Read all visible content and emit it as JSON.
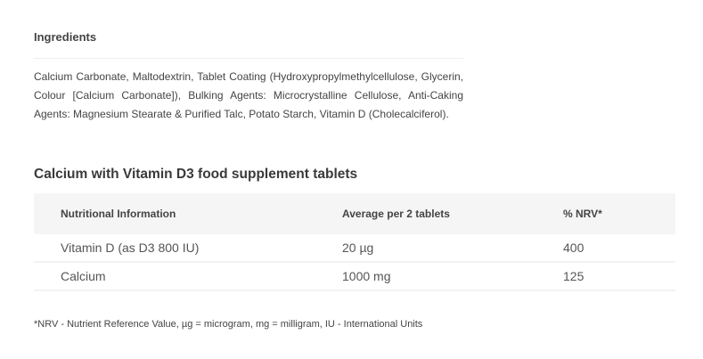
{
  "ingredients": {
    "heading": "Ingredients",
    "text": "Calcium Carbonate, Maltodextrin, Tablet Coating (Hydroxypropylmethylcellulose, Glycerin, Colour [Calcium Carbonate]), Bulking Agents: Microcrystalline Cellulose, Anti-Caking Agents: Magnesium Stearate & Purified Talc, Potato Starch, Vitamin D (Cholecalciferol)."
  },
  "nutrition": {
    "title": "Calcium with Vitamin D3 food supplement tablets",
    "headers": [
      "Nutritional Information",
      "Average per 2 tablets",
      "% NRV*"
    ],
    "rows": [
      [
        "Vitamin D (as D3 800 IU)",
        "20 µg",
        "400"
      ],
      [
        "Calcium",
        "1000 mg",
        "125"
      ]
    ],
    "footnote": "*NRV - Nutrient Reference Value, µg = microgram, mg = milligram, IU - International Units"
  }
}
